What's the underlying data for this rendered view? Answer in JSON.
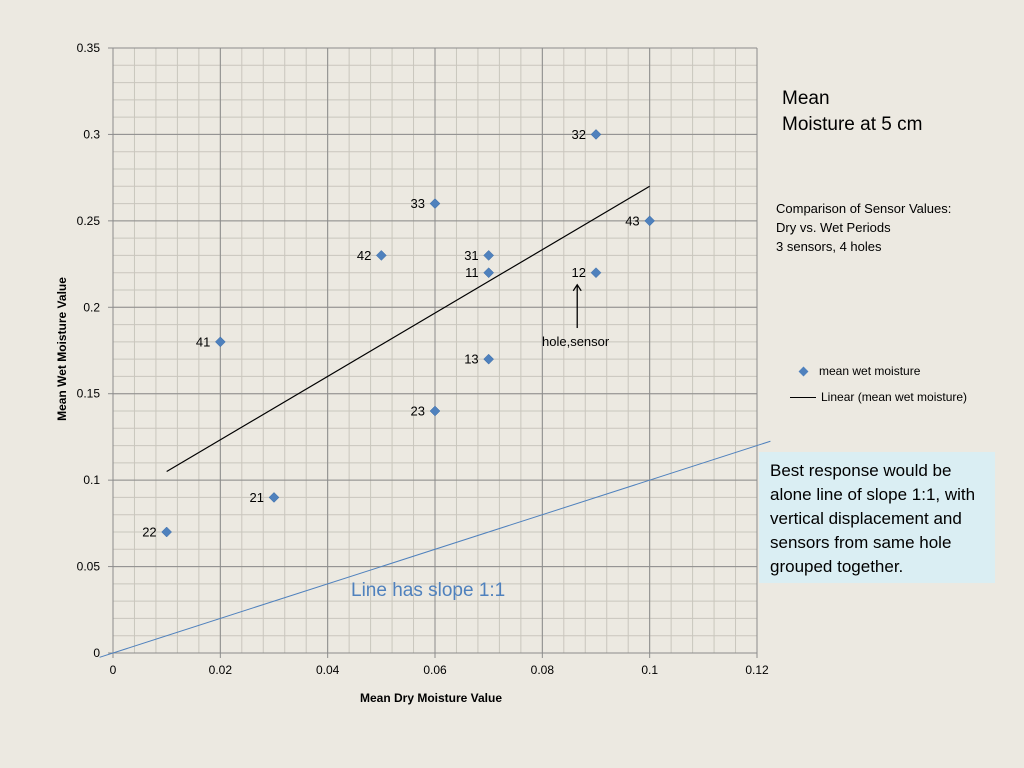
{
  "chart_data": {
    "type": "scatter",
    "title": "Mean\nMoisture at 5 cm",
    "subtitle": "Comparison of Sensor Values:\nDry vs. Wet Periods\n3 sensors, 4 holes",
    "xlabel": "Mean Dry Moisture Value",
    "ylabel": "Mean Wet Moisture Value",
    "xlim": [
      0,
      0.12
    ],
    "ylim": [
      0,
      0.35
    ],
    "x_ticks": [
      "0",
      "0.02",
      "0.04",
      "0.06",
      "0.08",
      "0.1",
      "0.12"
    ],
    "y_ticks": [
      "0",
      "0.05",
      "0.1",
      "0.15",
      "0.2",
      "0.25",
      "0.3",
      "0.35"
    ],
    "grid": true,
    "legend_position": "right",
    "series": [
      {
        "name": "mean wet moisture",
        "color": "#4f81bd",
        "marker": "diamond",
        "points": [
          {
            "x": 0.09,
            "y": 0.3,
            "label": "32"
          },
          {
            "x": 0.06,
            "y": 0.26,
            "label": "33"
          },
          {
            "x": 0.1,
            "y": 0.25,
            "label": "43"
          },
          {
            "x": 0.05,
            "y": 0.23,
            "label": "42"
          },
          {
            "x": 0.07,
            "y": 0.23,
            "label": "31"
          },
          {
            "x": 0.07,
            "y": 0.22,
            "label": "11"
          },
          {
            "x": 0.09,
            "y": 0.22,
            "label": "12"
          },
          {
            "x": 0.02,
            "y": 0.18,
            "label": "41"
          },
          {
            "x": 0.07,
            "y": 0.17,
            "label": "13"
          },
          {
            "x": 0.06,
            "y": 0.14,
            "label": "23"
          },
          {
            "x": 0.03,
            "y": 0.09,
            "label": "21"
          },
          {
            "x": 0.01,
            "y": 0.07,
            "label": "22"
          }
        ]
      }
    ],
    "trendline": {
      "name": "Linear (mean wet moisture)",
      "color": "#000000",
      "x": [
        0.01,
        0.1
      ],
      "y": [
        0.105,
        0.27
      ]
    },
    "reference_line": {
      "label": "Line has slope 1:1",
      "color": "#4f81bd",
      "slope": 1,
      "intercept": 0
    },
    "annotation": {
      "text": "hole,sensor",
      "arrow_from": {
        "x": 0.0865,
        "y": 0.188
      },
      "arrow_to": {
        "x": 0.0865,
        "y": 0.213
      }
    },
    "note": "Best response would be alone line of slope 1:1, with vertical displacement and sensors from same hole grouped together."
  }
}
